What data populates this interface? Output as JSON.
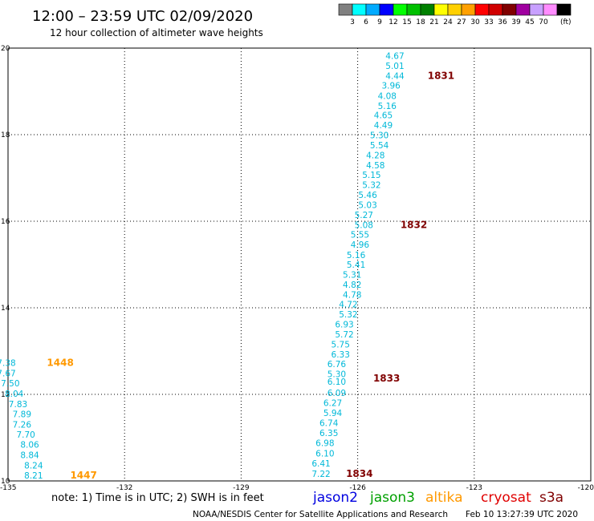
{
  "header": {
    "title": "12:00 – 23:59 UTC 02/09/2020",
    "subtitle": "12 hour collection of altimeter wave heights"
  },
  "legend_scale": {
    "labels": [
      "3",
      "6",
      "9",
      "12",
      "15",
      "18",
      "21",
      "24",
      "27",
      "30",
      "33",
      "36",
      "39",
      "45",
      "70",
      "(ft)"
    ],
    "colors": [
      "#808080",
      "#00ffff",
      "#00aaff",
      "#0000ff",
      "#00ff00",
      "#00c000",
      "#008000",
      "#ffff00",
      "#ffd000",
      "#ffa000",
      "#ff0000",
      "#d00000",
      "#800000",
      "#a000a0",
      "#c8a0ff",
      "#ff8cff",
      "#000000"
    ]
  },
  "footer": {
    "note": "note:  1) Time is in UTC;  2) SWH is in feet",
    "credit": "NOAA/NESDIS Center for Satellite Applications and Research",
    "timestamp": "Feb 10 13:27:39 UTC 2020",
    "satellites": [
      {
        "name": "jason2",
        "color": "#0000e0"
      },
      {
        "name": "jason3",
        "color": "#00a000"
      },
      {
        "name": "altika",
        "color": "#ff9900"
      },
      {
        "name": "cryosat",
        "color": "#e00000"
      },
      {
        "name": "s3a",
        "color": "#800000"
      }
    ]
  },
  "chart_data": {
    "type": "scatter",
    "title": "12:00 – 23:59 UTC 02/09/2020",
    "xlim": [
      -135,
      -120
    ],
    "ylim": [
      10,
      20
    ],
    "x_ticks": [
      "-135",
      "-132",
      "-129",
      "-126",
      "-123",
      "-120"
    ],
    "y_ticks": [
      "10",
      "12",
      "14",
      "16",
      "18",
      "20"
    ],
    "grid": true,
    "value_color": "#00b8d8",
    "series": [
      {
        "name": "altika",
        "color": "#ff9900",
        "points": [
          {
            "x": -134.8,
            "y": 12.73,
            "v": "7.38"
          },
          {
            "x": -134.8,
            "y": 12.49,
            "v": "7.67"
          },
          {
            "x": -134.7,
            "y": 12.26,
            "v": "7.50"
          },
          {
            "x": -134.6,
            "y": 12.02,
            "v": "8.04"
          },
          {
            "x": -134.5,
            "y": 11.78,
            "v": "7.83"
          },
          {
            "x": -134.4,
            "y": 11.55,
            "v": "7.89"
          },
          {
            "x": -134.4,
            "y": 11.31,
            "v": "7.26"
          },
          {
            "x": -134.3,
            "y": 11.07,
            "v": "7.70"
          },
          {
            "x": -134.2,
            "y": 10.84,
            "v": "8.06"
          },
          {
            "x": -134.2,
            "y": 10.6,
            "v": "8.84"
          },
          {
            "x": -134.1,
            "y": 10.36,
            "v": "8.24"
          },
          {
            "x": -134.1,
            "y": 10.13,
            "v": "8.21"
          }
        ],
        "time_labels": [
          {
            "x": -134.0,
            "y": 12.73,
            "t": "1448"
          },
          {
            "x": -133.4,
            "y": 10.13,
            "t": "1447"
          }
        ]
      },
      {
        "name": "s3a",
        "color": "#800000",
        "points": [
          {
            "x": -124.8,
            "y": 19.82,
            "v": "4.67"
          },
          {
            "x": -124.8,
            "y": 19.59,
            "v": "5.01"
          },
          {
            "x": -124.8,
            "y": 19.36,
            "v": "4.44"
          },
          {
            "x": -124.9,
            "y": 19.14,
            "v": "3.96"
          },
          {
            "x": -125.0,
            "y": 18.9,
            "v": "4.08"
          },
          {
            "x": -125.0,
            "y": 18.67,
            "v": "5.16"
          },
          {
            "x": -125.1,
            "y": 18.45,
            "v": "4.65"
          },
          {
            "x": -125.1,
            "y": 18.22,
            "v": "4.49"
          },
          {
            "x": -125.2,
            "y": 17.99,
            "v": "5.30"
          },
          {
            "x": -125.2,
            "y": 17.76,
            "v": "5.54"
          },
          {
            "x": -125.3,
            "y": 17.53,
            "v": "4.28"
          },
          {
            "x": -125.3,
            "y": 17.3,
            "v": "4.58"
          },
          {
            "x": -125.4,
            "y": 17.07,
            "v": "5.15"
          },
          {
            "x": -125.4,
            "y": 16.84,
            "v": "5.32"
          },
          {
            "x": -125.5,
            "y": 16.61,
            "v": "5.46"
          },
          {
            "x": -125.5,
            "y": 16.38,
            "v": "5.03"
          },
          {
            "x": -125.6,
            "y": 16.15,
            "v": "5.27"
          },
          {
            "x": -125.6,
            "y": 15.92,
            "v": "5.08"
          },
          {
            "x": -125.7,
            "y": 15.69,
            "v": "5.55"
          },
          {
            "x": -125.7,
            "y": 15.46,
            "v": "4.96"
          },
          {
            "x": -125.8,
            "y": 15.22,
            "v": "5.16"
          },
          {
            "x": -125.8,
            "y": 15.0,
            "v": "5.41"
          },
          {
            "x": -125.9,
            "y": 14.77,
            "v": "5.31"
          },
          {
            "x": -125.9,
            "y": 14.54,
            "v": "4.82"
          },
          {
            "x": -125.9,
            "y": 14.31,
            "v": "4.78"
          },
          {
            "x": -126.0,
            "y": 14.08,
            "v": "4.72"
          },
          {
            "x": -126.0,
            "y": 13.85,
            "v": "5.32"
          },
          {
            "x": -126.1,
            "y": 13.62,
            "v": "6.93"
          },
          {
            "x": -126.1,
            "y": 13.39,
            "v": "5.72"
          },
          {
            "x": -126.2,
            "y": 13.16,
            "v": "5.75"
          },
          {
            "x": -126.2,
            "y": 12.93,
            "v": "6.33"
          },
          {
            "x": -126.3,
            "y": 12.7,
            "v": "6.76"
          },
          {
            "x": -126.3,
            "y": 12.47,
            "v": "5.30"
          },
          {
            "x": -126.3,
            "y": 12.3,
            "v": "6.10"
          },
          {
            "x": -126.3,
            "y": 12.04,
            "v": "6.09"
          },
          {
            "x": -126.4,
            "y": 11.81,
            "v": "6.27"
          },
          {
            "x": -126.4,
            "y": 11.57,
            "v": "5.94"
          },
          {
            "x": -126.5,
            "y": 11.34,
            "v": "6.74"
          },
          {
            "x": -126.5,
            "y": 11.11,
            "v": "6.35"
          },
          {
            "x": -126.6,
            "y": 10.88,
            "v": "6.98"
          },
          {
            "x": -126.6,
            "y": 10.64,
            "v": "6.10"
          },
          {
            "x": -126.7,
            "y": 10.41,
            "v": "6.41"
          },
          {
            "x": -126.7,
            "y": 10.17,
            "v": "7.22"
          }
        ],
        "time_labels": [
          {
            "x": -124.2,
            "y": 19.36,
            "t": "1831"
          },
          {
            "x": -124.9,
            "y": 15.92,
            "t": "1832"
          },
          {
            "x": -125.6,
            "y": 12.37,
            "t": "1833"
          },
          {
            "x": -126.3,
            "y": 10.17,
            "t": "1834"
          }
        ]
      }
    ]
  }
}
